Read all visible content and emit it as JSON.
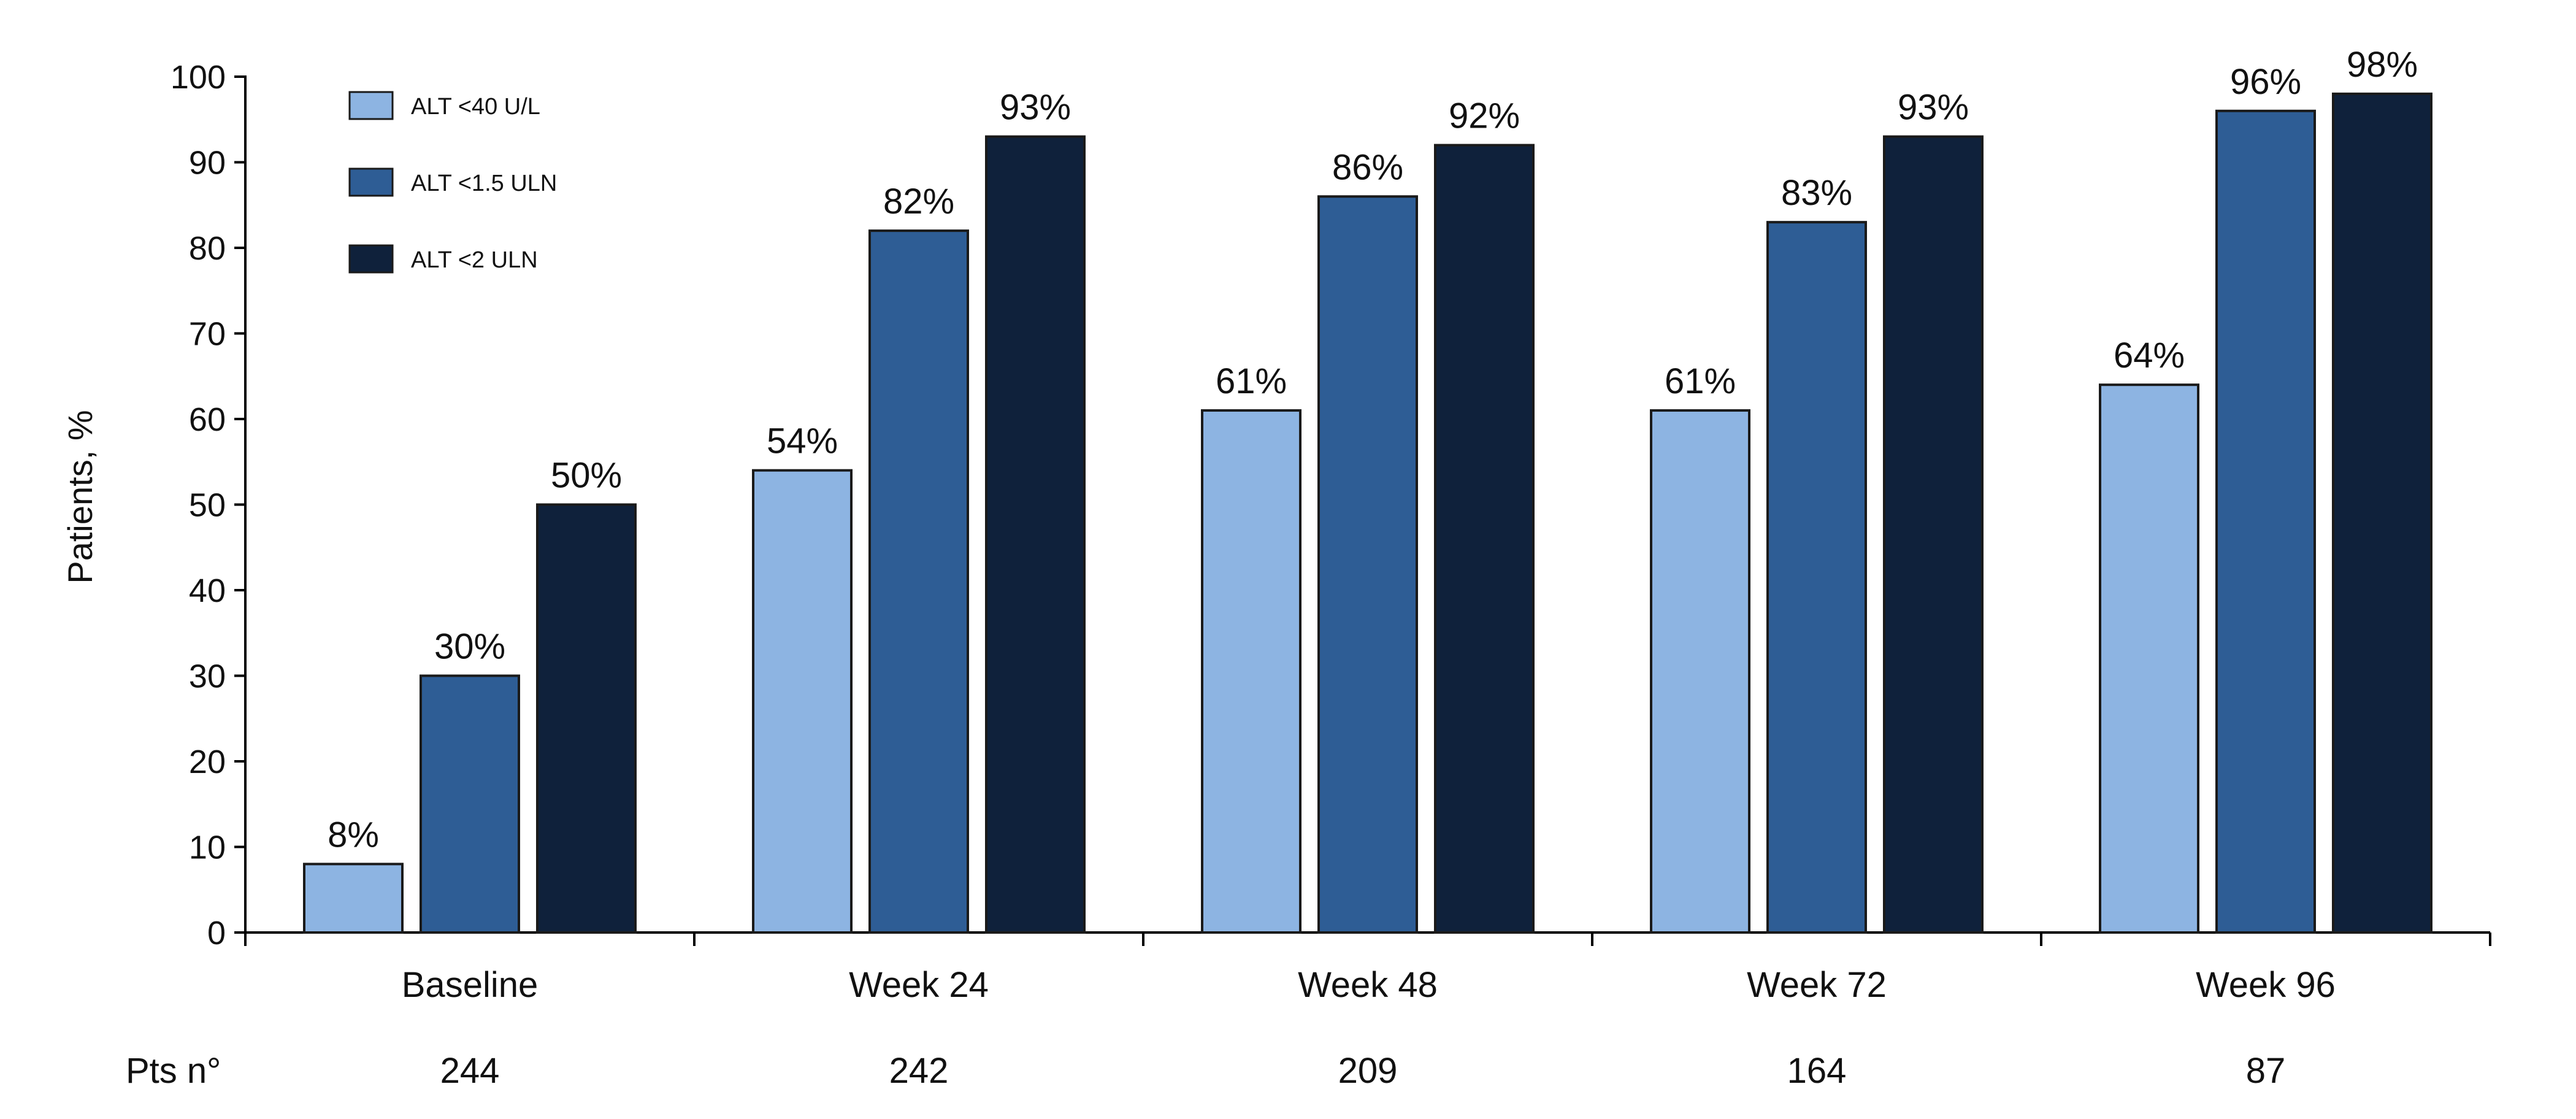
{
  "chart_data": {
    "type": "bar",
    "ylabel": "Patients, %",
    "ylim": [
      0,
      100
    ],
    "yticks": [
      0,
      10,
      20,
      30,
      40,
      50,
      60,
      70,
      80,
      90,
      100
    ],
    "categories": [
      "Baseline",
      "Week 24",
      "Week 48",
      "Week 72",
      "Week 96"
    ],
    "series": [
      {
        "name": "ALT <40 U/L",
        "color": "#8db4e2",
        "values": [
          8,
          54,
          61,
          61,
          64
        ],
        "labels": [
          "8%",
          "54%",
          "61%",
          "61%",
          "64%"
        ]
      },
      {
        "name": "ALT <1.5 ULN",
        "color": "#2e5d95",
        "values": [
          30,
          82,
          86,
          83,
          96
        ],
        "labels": [
          "30%",
          "82%",
          "86%",
          "83%",
          "96%"
        ]
      },
      {
        "name": "ALT <2 ULN",
        "color": "#0f213b",
        "values": [
          50,
          93,
          92,
          93,
          98
        ],
        "labels": [
          "50%",
          "93%",
          "92%",
          "93%",
          "98%"
        ]
      }
    ],
    "legend_position": "top-left",
    "grid": false,
    "pts_row": {
      "label": "Pts n°",
      "values": [
        "244",
        "242",
        "209",
        "164",
        "87"
      ]
    }
  }
}
